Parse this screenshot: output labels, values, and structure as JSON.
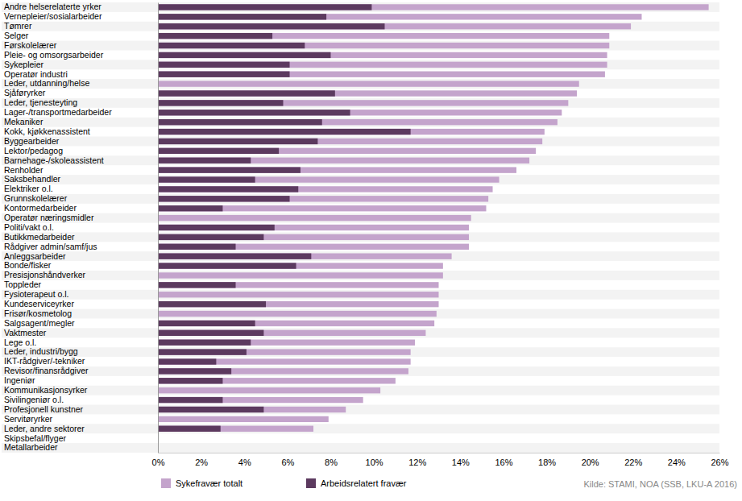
{
  "chart_data": {
    "type": "bar",
    "orientation": "horizontal",
    "stacked": false,
    "grid": false,
    "legend": "bottom",
    "source": "Kilde: STAMI, NOA (SSB, LKU-A 2016)",
    "categories": [
      "Andre helserelaterte yrker",
      "Vernepleier/sosialarbeider",
      "Tømrer",
      "Selger",
      "Førskolelærer",
      "Pleie- og omsorgsarbeider",
      "Sykepleier",
      "Operatør industri",
      "Leder, utdanning/helse",
      "Sjåføryrker",
      "Leder, tjenesteyting",
      "Lager-/transportmedarbeider",
      "Mekaniker",
      "Kokk, kjøkkenassistent",
      "Byggearbeider",
      "Lektor/pedagog",
      "Barnehage-/skoleassistent",
      "Renholder",
      "Saksbehandler",
      "Elektriker o.l.",
      "Grunnskolelærer",
      "Kontormedarbeider",
      "Operatør næringsmidler",
      "Politi/vakt o.l.",
      "Butikkmedarbeider",
      "Rådgiver admin/samf/jus",
      "Anleggsarbeider",
      "Bonde/fisker",
      "Presisjonshåndverker",
      "Toppleder",
      "Fysioterapeut o.l.",
      "Kundeserviceyrker",
      "Frisør/kosmetolog",
      "Salgsagent/megler",
      "Vaktmester",
      "Lege o.l.",
      "Leder, industri/bygg",
      "IKT-rådgiver/-tekniker",
      "Revisor/finansrådgiver",
      "Ingeniør",
      "Kommunikasjonsyrker",
      "Sivilingeniør o.l.",
      "Profesjonell kunstner",
      "Servitøryrker",
      "Leder, andre sektorer",
      "Skipsbefal/flyger",
      "Metallarbeider"
    ],
    "series": [
      {
        "name": "Sykefravær totalt",
        "color": "#c4a4cc",
        "values": [
          25.5,
          22.4,
          21.9,
          20.9,
          20.9,
          20.8,
          20.8,
          20.7,
          19.5,
          19.4,
          19.0,
          18.7,
          18.5,
          17.9,
          17.8,
          17.5,
          17.2,
          16.6,
          15.8,
          15.5,
          15.3,
          15.2,
          14.5,
          14.4,
          14.4,
          14.4,
          13.6,
          13.2,
          13.2,
          13.0,
          13.0,
          13.0,
          12.9,
          12.8,
          12.4,
          11.9,
          11.7,
          11.7,
          11.6,
          11.0,
          10.3,
          9.5,
          8.7,
          7.9,
          7.2,
          null,
          null
        ]
      },
      {
        "name": "Arbeidsrelatert fravær",
        "color": "#5c3a5f",
        "values": [
          9.9,
          7.8,
          10.5,
          5.3,
          6.8,
          8.0,
          6.1,
          6.1,
          null,
          8.2,
          5.8,
          8.9,
          7.6,
          11.7,
          7.4,
          5.6,
          4.3,
          6.6,
          4.5,
          6.5,
          6.1,
          3.0,
          null,
          5.4,
          4.9,
          3.6,
          7.1,
          6.4,
          null,
          3.6,
          null,
          5.0,
          null,
          4.5,
          4.9,
          4.3,
          4.1,
          2.7,
          3.4,
          3.0,
          null,
          3.0,
          4.9,
          null,
          2.9,
          null,
          null
        ]
      }
    ],
    "xlim": [
      0,
      26
    ],
    "xticks": [
      {
        "value": 0,
        "label": "0%"
      },
      {
        "value": 2,
        "label": "2%"
      },
      {
        "value": 4,
        "label": "4%"
      },
      {
        "value": 6,
        "label": "6%"
      },
      {
        "value": 8,
        "label": "8%"
      },
      {
        "value": 10,
        "label": "10%"
      },
      {
        "value": 12,
        "label": "12%"
      },
      {
        "value": 14,
        "label": "14%"
      },
      {
        "value": 16,
        "label": "16%"
      },
      {
        "value": 18,
        "label": "18%"
      },
      {
        "value": 20,
        "label": "20%"
      },
      {
        "value": 22,
        "label": "22%"
      },
      {
        "value": 24,
        "label": "24%"
      },
      {
        "value": 26,
        "label": "26%"
      }
    ]
  }
}
